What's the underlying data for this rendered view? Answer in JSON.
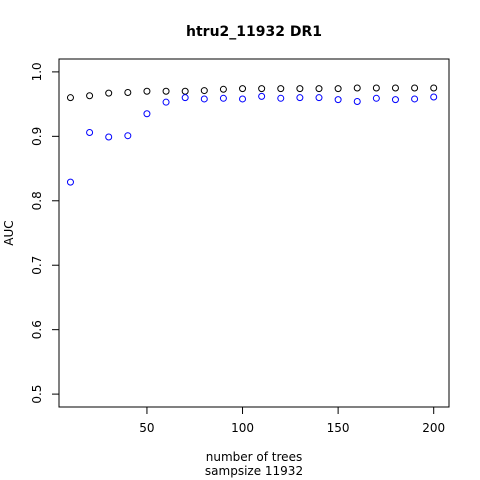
{
  "chart_data": {
    "type": "scatter",
    "title": "htru2_11932 DR1",
    "xlabel": "number of trees",
    "xlabel_sub": "sampsize 11932",
    "ylabel": "AUC",
    "xlim": [
      4,
      208
    ],
    "ylim": [
      0.48,
      1.02
    ],
    "x_ticks": [
      50,
      100,
      150,
      200
    ],
    "y_ticks": [
      0.5,
      0.6,
      0.7,
      0.8,
      0.9,
      1.0
    ],
    "y_tick_labels": [
      "0.5",
      "0.6",
      "0.7",
      "0.8",
      "0.9",
      "1.0"
    ],
    "x": [
      10,
      20,
      30,
      40,
      50,
      60,
      70,
      80,
      90,
      100,
      110,
      120,
      130,
      140,
      150,
      160,
      170,
      180,
      190,
      200
    ],
    "series": [
      {
        "color": "#000000",
        "values": [
          0.96,
          0.963,
          0.967,
          0.968,
          0.97,
          0.97,
          0.97,
          0.971,
          0.973,
          0.974,
          0.974,
          0.974,
          0.974,
          0.974,
          0.974,
          0.975,
          0.975,
          0.975,
          0.975,
          0.975
        ]
      },
      {
        "color": "#0000ff",
        "values": [
          0.829,
          0.906,
          0.899,
          0.901,
          0.935,
          0.953,
          0.96,
          0.958,
          0.959,
          0.958,
          0.962,
          0.959,
          0.96,
          0.96,
          0.957,
          0.954,
          0.959,
          0.957,
          0.958,
          0.961
        ]
      }
    ]
  }
}
